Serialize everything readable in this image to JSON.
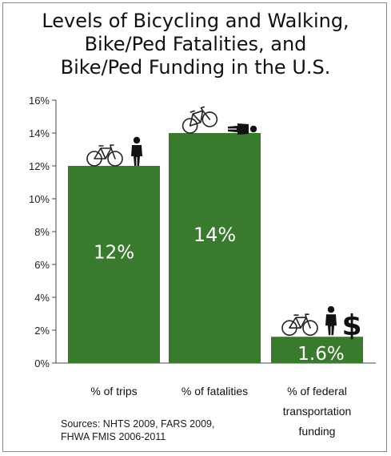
{
  "title_lines": [
    "Levels of Bicycling and Walking,",
    "Bike/Ped Fatalities, and",
    "Bike/Ped Funding in the U.S."
  ],
  "sources_lines": [
    "Sources: NHTS 2009, FARS 2009,",
    "FHWA FMIS 2006-2011"
  ],
  "colors": {
    "bar": "#3a7a2e",
    "axis": "#444444",
    "bar_label": "#ffffff"
  },
  "icons": [
    "bicycle-icon",
    "pedestrian-icon",
    "dollar-icon"
  ],
  "chart_data": {
    "type": "bar",
    "title": "Levels of Bicycling and Walking, Bike/Ped Fatalities, and Bike/Ped Funding in the U.S.",
    "categories": [
      [
        "% of trips"
      ],
      [
        "% of fatalities"
      ],
      [
        "% of federal",
        "transportation",
        "funding"
      ]
    ],
    "values": [
      12,
      14,
      1.6
    ],
    "value_labels": [
      "12%",
      "14%",
      "1.6%"
    ],
    "ylim": [
      0,
      16
    ],
    "yticks": [
      "0%",
      "2%",
      "4%",
      "6%",
      "8%",
      "10%",
      "12%",
      "14%",
      "16%"
    ],
    "ytick_step": 2,
    "grid": false,
    "legend": "none"
  }
}
